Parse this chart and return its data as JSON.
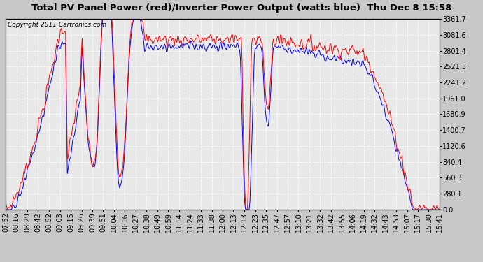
{
  "title": "Total PV Panel Power (red)/Inverter Power Output (watts blue)  Thu Dec 8 15:58",
  "copyright": "Copyright 2011 Cartronics.com",
  "ylabel_right_ticks": [
    0.0,
    280.1,
    560.3,
    840.4,
    1120.6,
    1400.7,
    1680.9,
    1961.0,
    2241.2,
    2521.3,
    2801.4,
    3081.6,
    3361.7
  ],
  "ymin": 0.0,
  "ymax": 3361.7,
  "bg_color": "#e8e8e8",
  "grid_color": "#ffffff",
  "line_color_red": "#ff0000",
  "line_color_blue": "#0000ff",
  "title_bg": "#c8c8c8",
  "plot_bg": "#c8c8c8",
  "title_fontsize": 9.5,
  "copyright_fontsize": 6.5,
  "tick_fontsize": 7,
  "x_tick_labels": [
    "07:52",
    "08:16",
    "08:29",
    "08:42",
    "08:52",
    "09:03",
    "09:15",
    "09:26",
    "09:39",
    "09:51",
    "10:04",
    "10:16",
    "10:27",
    "10:38",
    "10:49",
    "10:59",
    "11:14",
    "11:24",
    "11:33",
    "11:38",
    "12:00",
    "12:13",
    "12:13",
    "12:23",
    "12:35",
    "12:47",
    "12:57",
    "13:10",
    "13:21",
    "13:32",
    "13:42",
    "13:55",
    "14:06",
    "14:19",
    "14:32",
    "14:43",
    "14:53",
    "15:07",
    "15:17",
    "15:30",
    "15:41"
  ]
}
